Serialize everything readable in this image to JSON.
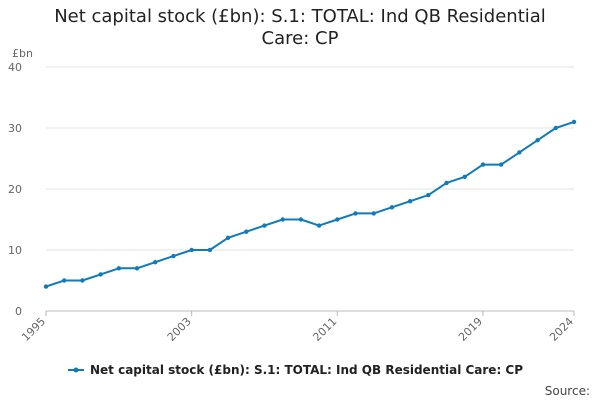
{
  "chart_data": {
    "type": "line",
    "title": "Net capital stock (£bn): S.1: TOTAL: Ind QB Residential Care: CP",
    "ylabel": "£bn",
    "xlabel": "",
    "ylim": [
      0,
      40
    ],
    "yticks": [
      0,
      10,
      20,
      30,
      40
    ],
    "xticks": [
      1995,
      2003,
      2011,
      2019,
      2024
    ],
    "grid": true,
    "legend_position": "bottom",
    "source_label": "Source:",
    "series": [
      {
        "name": "Net capital stock (£bn): S.1: TOTAL: Ind QB Residential Care: CP",
        "color": "#0f7bbd",
        "x": [
          1995,
          1996,
          1997,
          1998,
          1999,
          2000,
          2001,
          2002,
          2003,
          2004,
          2005,
          2006,
          2007,
          2008,
          2009,
          2010,
          2011,
          2012,
          2013,
          2014,
          2015,
          2016,
          2017,
          2018,
          2019,
          2020,
          2021,
          2022,
          2023,
          2024
        ],
        "values": [
          4,
          5,
          5,
          6,
          7,
          7,
          8,
          9,
          10,
          10,
          12,
          13,
          14,
          15,
          15,
          14,
          15,
          16,
          16,
          17,
          18,
          19,
          21,
          22,
          24,
          24,
          26,
          28,
          30,
          31
        ]
      }
    ]
  }
}
